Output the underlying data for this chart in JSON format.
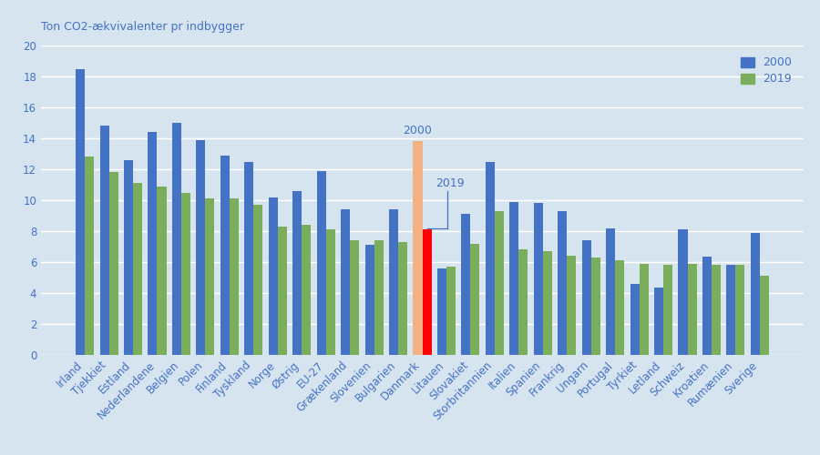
{
  "categories": [
    "Irland",
    "Tjekkiet",
    "Estland",
    "Nederlandene",
    "Belgien",
    "Polen",
    "Finland",
    "Tyskland",
    "Norge",
    "Østrig",
    "EU-27",
    "Grækenland",
    "Slovenien",
    "Bulgarien",
    "Danmark",
    "Litauen",
    "Slovakiet",
    "Storbritannien",
    "Italien",
    "Spanien",
    "Frankrig",
    "Ungarn",
    "Portugal",
    "Tyrkiet",
    "Letland",
    "Schweiz",
    "Kroatien",
    "Rumænien",
    "Sverige"
  ],
  "values_2000": [
    18.5,
    14.8,
    12.6,
    14.4,
    15.0,
    13.9,
    12.9,
    12.5,
    10.2,
    10.6,
    11.9,
    9.4,
    7.1,
    9.4,
    13.8,
    5.6,
    9.1,
    12.5,
    9.9,
    9.8,
    9.3,
    7.4,
    8.2,
    4.6,
    4.35,
    8.1,
    6.35,
    5.85,
    7.9
  ],
  "values_2019": [
    12.8,
    11.8,
    11.1,
    10.9,
    10.5,
    10.1,
    10.1,
    9.7,
    8.3,
    8.4,
    8.1,
    7.4,
    7.4,
    7.3,
    8.1,
    5.7,
    7.2,
    9.3,
    6.8,
    6.7,
    6.4,
    6.3,
    6.1,
    5.9,
    5.85,
    5.9,
    5.85,
    5.85,
    5.1
  ],
  "bar_color_2000": "#4472C4",
  "bar_color_2019": "#7AAE5A",
  "bar_color_denmark_2000": "#F4B183",
  "bar_color_denmark_2019": "#FF0000",
  "background_color": "#D6E4F0",
  "ylabel": "Ton CO2-ækvivalenter pr indbygger",
  "ylim": [
    0,
    20
  ],
  "yticks": [
    0,
    2,
    4,
    6,
    8,
    10,
    12,
    14,
    16,
    18,
    20
  ],
  "legend_2000": "2000",
  "legend_2019": "2019",
  "denmark_index": 14,
  "grid_color": "#FFFFFF",
  "text_color": "#4472C4",
  "tick_fontsize": 8.5,
  "ylabel_fontsize": 9
}
